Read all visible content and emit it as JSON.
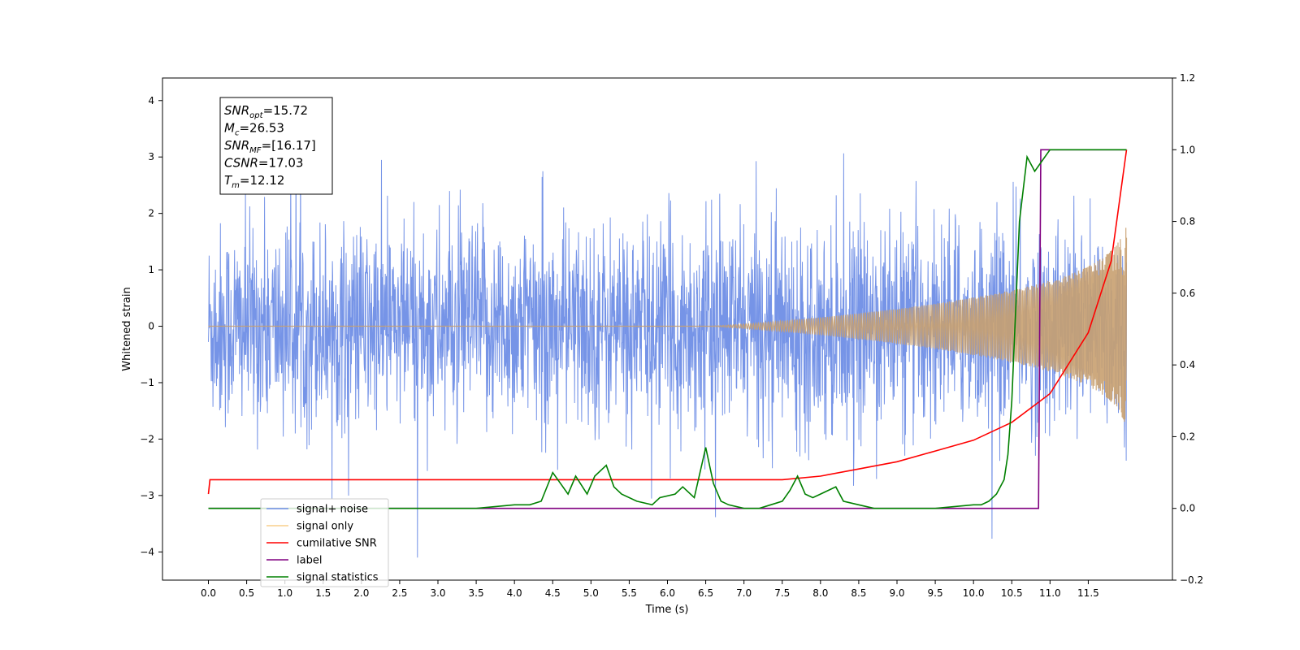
{
  "chart_data": {
    "type": "line",
    "xlabel": "Time (s)",
    "ylabel": "Whitened strain",
    "xlim": [
      -0.6,
      12.6
    ],
    "ylim_left": [
      -4.5,
      4.4
    ],
    "ylim_right": [
      -0.2,
      1.2
    ],
    "x_ticks": [
      "0.0",
      "0.5",
      "1.0",
      "1.5",
      "2.0",
      "2.5",
      "3.0",
      "3.5",
      "4.0",
      "4.5",
      "5.0",
      "5.5",
      "6.0",
      "6.5",
      "7.0",
      "7.5",
      "8.0",
      "8.5",
      "9.0",
      "9.5",
      "10.0",
      "10.5",
      "11.0",
      "11.5"
    ],
    "y_ticks_left": [
      "−4",
      "−3",
      "−2",
      "−1",
      "0",
      "1",
      "2",
      "3",
      "4"
    ],
    "y_ticks_right": [
      "−0.2",
      "0.0",
      "0.2",
      "0.4",
      "0.6",
      "0.8",
      "1.0",
      "1.2"
    ],
    "grid": false,
    "legend_position": "lower-left",
    "annotation": {
      "lines": [
        {
          "sym": "SNR",
          "sub": "opt",
          "val": "=15.72"
        },
        {
          "sym": "M",
          "sub": "c",
          "val": "=26.53"
        },
        {
          "sym": "SNR",
          "sub": "MF",
          "val": "=[16.17]"
        },
        {
          "sym": "CSNR",
          "sub": "",
          "val": "=17.03"
        },
        {
          "sym": "T",
          "sub": "m",
          "val": "=12.12"
        }
      ]
    },
    "series": [
      {
        "name": "signal+ noise",
        "color": "#6f8ee6",
        "axis": "left",
        "description": "whitened noise, roughly ±2 with spikes up to ~4, over 0–12 s"
      },
      {
        "name": "signal only",
        "color": "#f5b041",
        "axis": "left",
        "chirp": {
          "t_start": 0.0,
          "t_end": 12.0,
          "t_merge": 12.12,
          "amp_end": 1.8
        }
      },
      {
        "name": "cumilative SNR",
        "color": "#ff0000",
        "axis": "right",
        "x": [
          0.0,
          0.02,
          0.05,
          7.5,
          8.0,
          8.5,
          9.0,
          9.5,
          10.0,
          10.5,
          11.0,
          11.5,
          11.8,
          12.0
        ],
        "y": [
          0.04,
          0.08,
          0.08,
          0.08,
          0.09,
          0.11,
          0.13,
          0.16,
          0.19,
          0.24,
          0.32,
          0.49,
          0.69,
          1.0
        ]
      },
      {
        "name": "label",
        "color": "#800080",
        "axis": "right",
        "x": [
          0.0,
          10.85,
          10.88,
          12.0
        ],
        "y": [
          0.0,
          0.0,
          1.0,
          1.0
        ]
      },
      {
        "name": "signal statistics",
        "color": "#008000",
        "axis": "right",
        "x": [
          0.0,
          3.5,
          4.0,
          4.2,
          4.35,
          4.5,
          4.6,
          4.7,
          4.8,
          4.95,
          5.05,
          5.2,
          5.3,
          5.4,
          5.6,
          5.8,
          5.9,
          6.1,
          6.2,
          6.35,
          6.5,
          6.6,
          6.7,
          6.8,
          7.0,
          7.2,
          7.35,
          7.5,
          7.6,
          7.7,
          7.8,
          7.9,
          8.0,
          8.1,
          8.2,
          8.3,
          8.5,
          8.7,
          9.0,
          9.5,
          10.0,
          10.1,
          10.2,
          10.3,
          10.4,
          10.45,
          10.5,
          10.55,
          10.6,
          10.7,
          10.8,
          10.9,
          11.0,
          11.1,
          11.2,
          12.0
        ],
        "y": [
          0.0,
          0.0,
          0.01,
          0.01,
          0.02,
          0.1,
          0.07,
          0.04,
          0.09,
          0.04,
          0.09,
          0.12,
          0.06,
          0.04,
          0.02,
          0.01,
          0.03,
          0.04,
          0.06,
          0.03,
          0.17,
          0.07,
          0.02,
          0.01,
          0.0,
          0.0,
          0.01,
          0.02,
          0.05,
          0.09,
          0.04,
          0.03,
          0.04,
          0.05,
          0.06,
          0.02,
          0.01,
          0.0,
          0.0,
          0.0,
          0.01,
          0.01,
          0.02,
          0.04,
          0.08,
          0.15,
          0.3,
          0.55,
          0.8,
          0.98,
          0.94,
          0.97,
          1.0,
          1.0,
          1.0,
          1.0
        ]
      }
    ]
  }
}
